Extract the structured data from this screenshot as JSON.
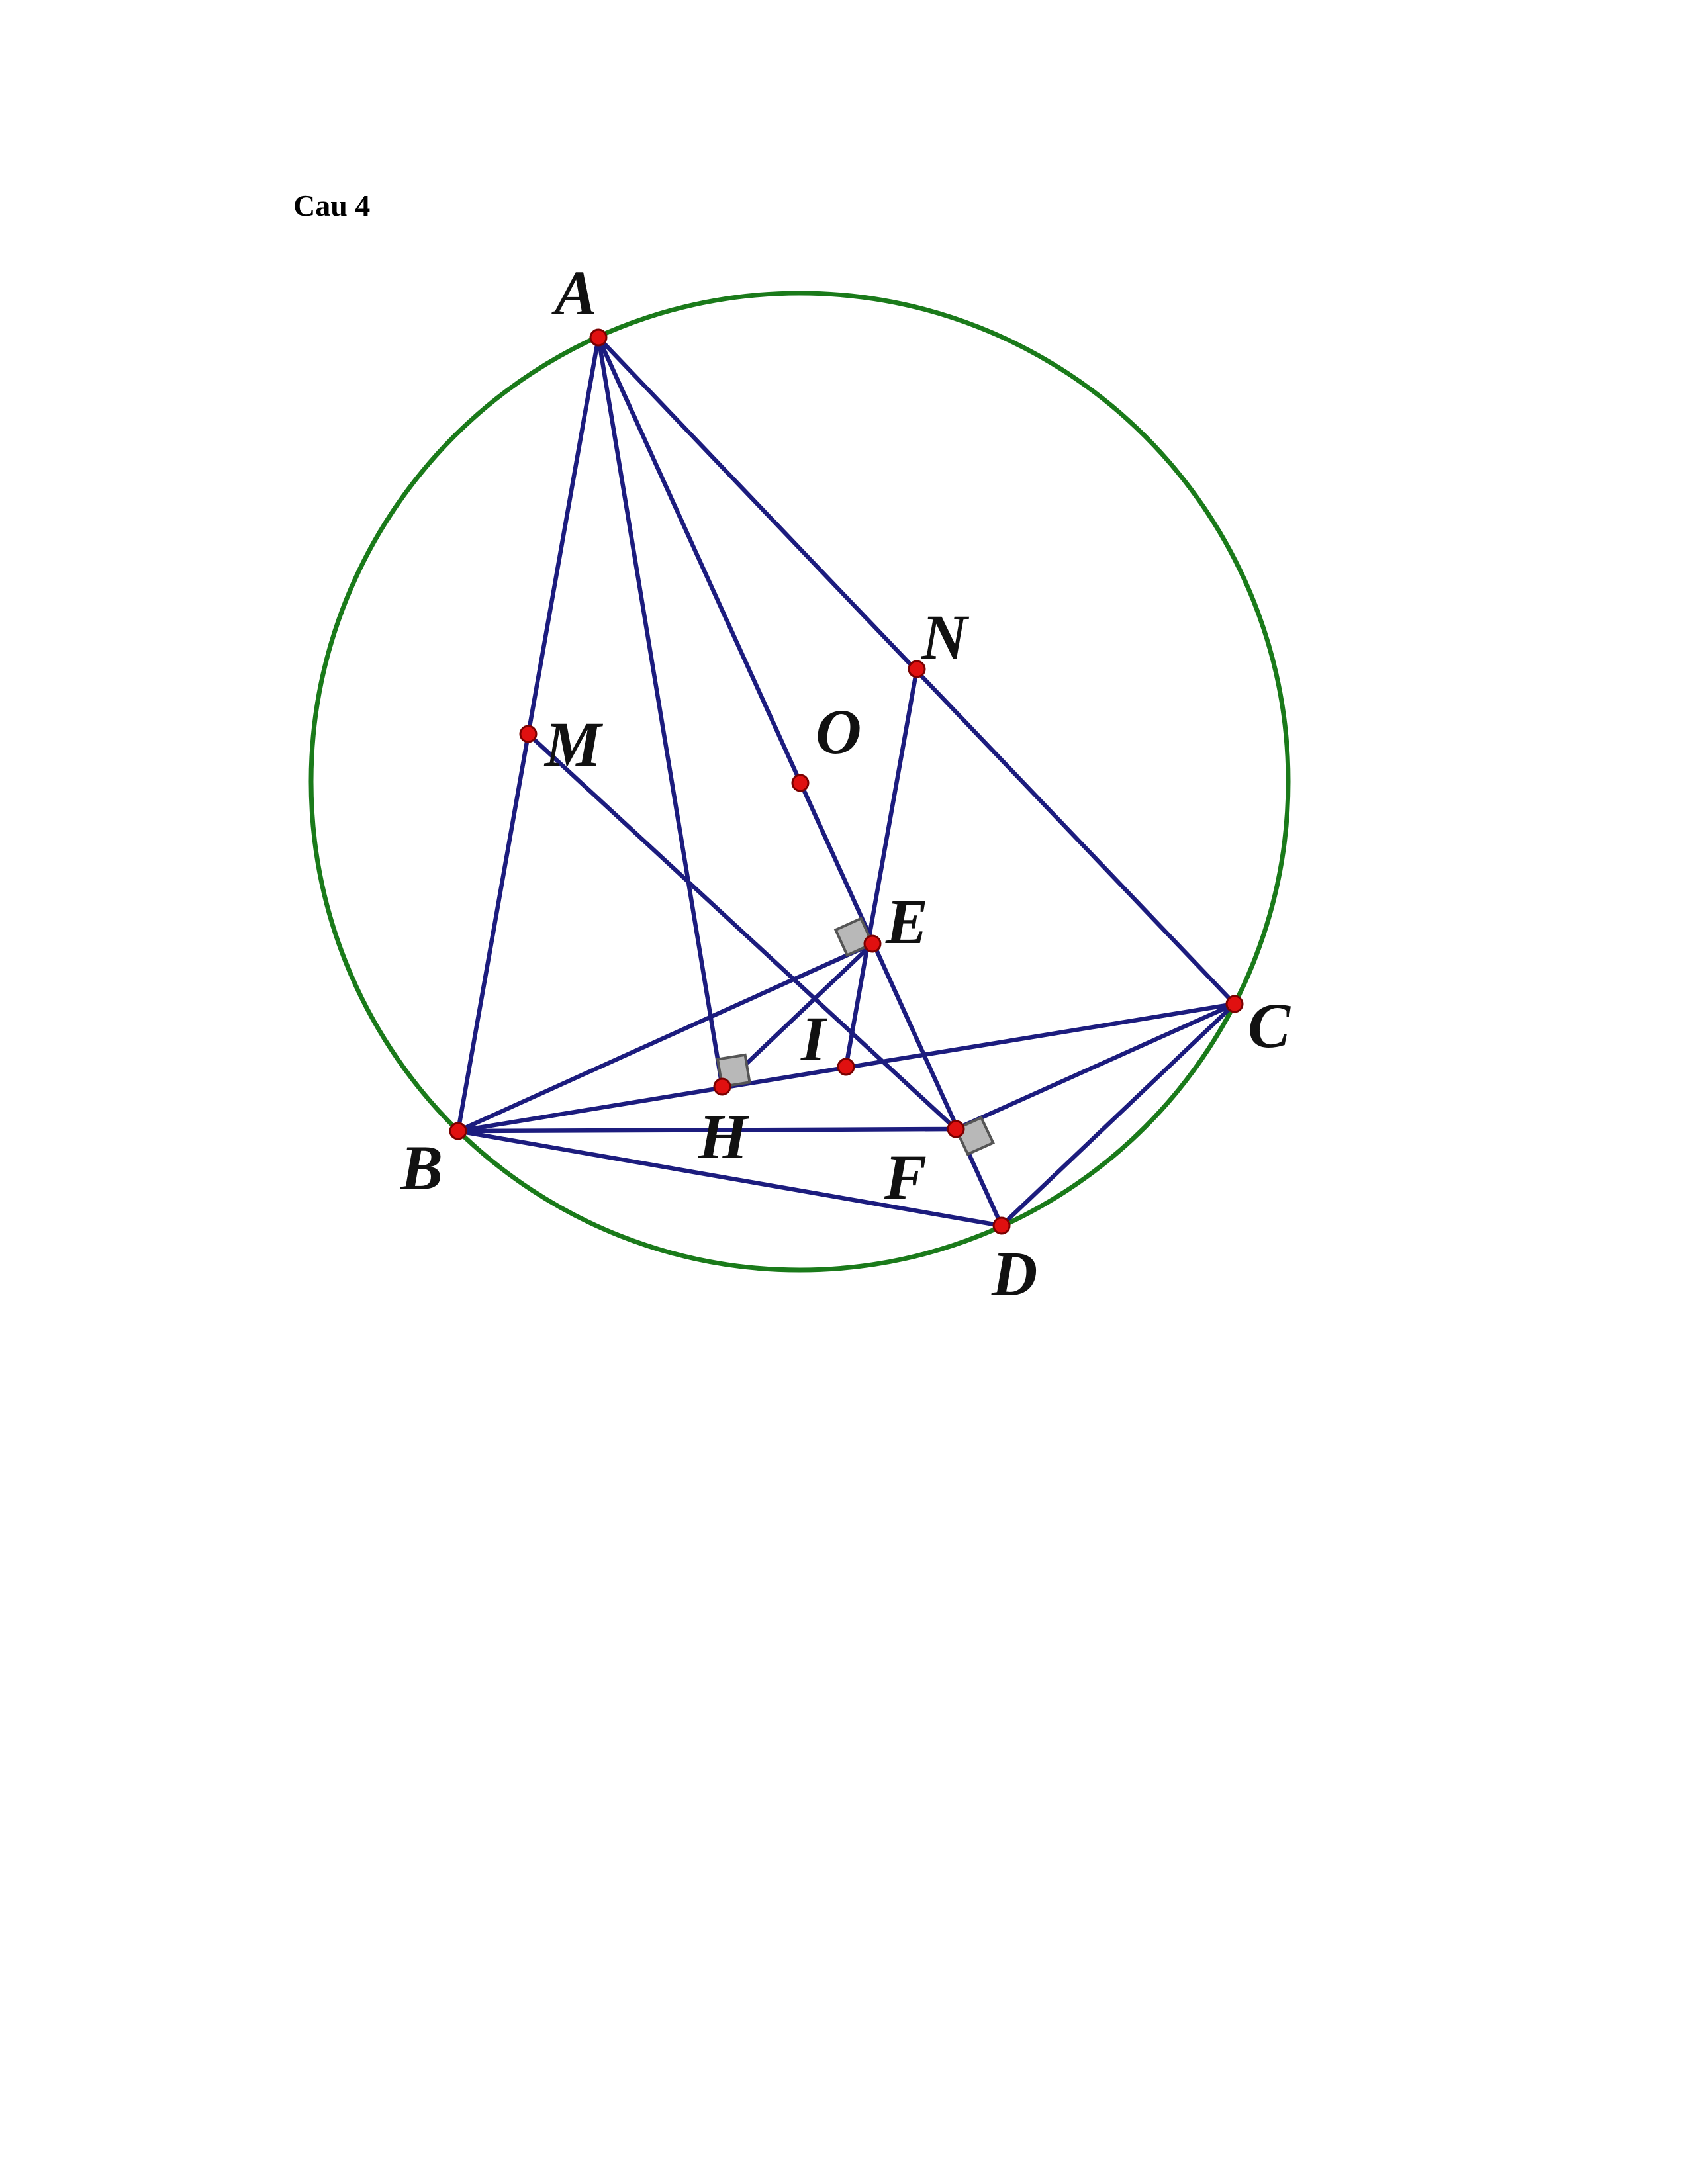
{
  "heading": "Cau 4",
  "colors": {
    "circle": "#1a7a1a",
    "segment": "#1c1c7e",
    "point_fill": "#e01010",
    "point_stroke": "#7a0000",
    "right_angle_fill": "#b8b8b8",
    "right_angle_stroke": "#555555"
  },
  "points": [
    {
      "id": "A",
      "label": "A"
    },
    {
      "id": "B",
      "label": "B"
    },
    {
      "id": "C",
      "label": "C"
    },
    {
      "id": "D",
      "label": "D"
    },
    {
      "id": "O",
      "label": "O"
    },
    {
      "id": "M",
      "label": "M"
    },
    {
      "id": "N",
      "label": "N"
    },
    {
      "id": "E",
      "label": "E"
    },
    {
      "id": "I",
      "label": "I"
    },
    {
      "id": "H",
      "label": "H"
    },
    {
      "id": "F",
      "label": "F"
    }
  ],
  "segments": [
    [
      "A",
      "B"
    ],
    [
      "A",
      "C"
    ],
    [
      "A",
      "H"
    ],
    [
      "A",
      "D"
    ],
    [
      "B",
      "D"
    ],
    [
      "C",
      "D"
    ],
    [
      "B",
      "C"
    ],
    [
      "B",
      "E"
    ],
    [
      "B",
      "F"
    ],
    [
      "C",
      "F"
    ],
    [
      "M",
      "F"
    ],
    [
      "N",
      "I"
    ],
    [
      "H",
      "E"
    ]
  ],
  "right_angles": [
    "H",
    "E",
    "F"
  ]
}
